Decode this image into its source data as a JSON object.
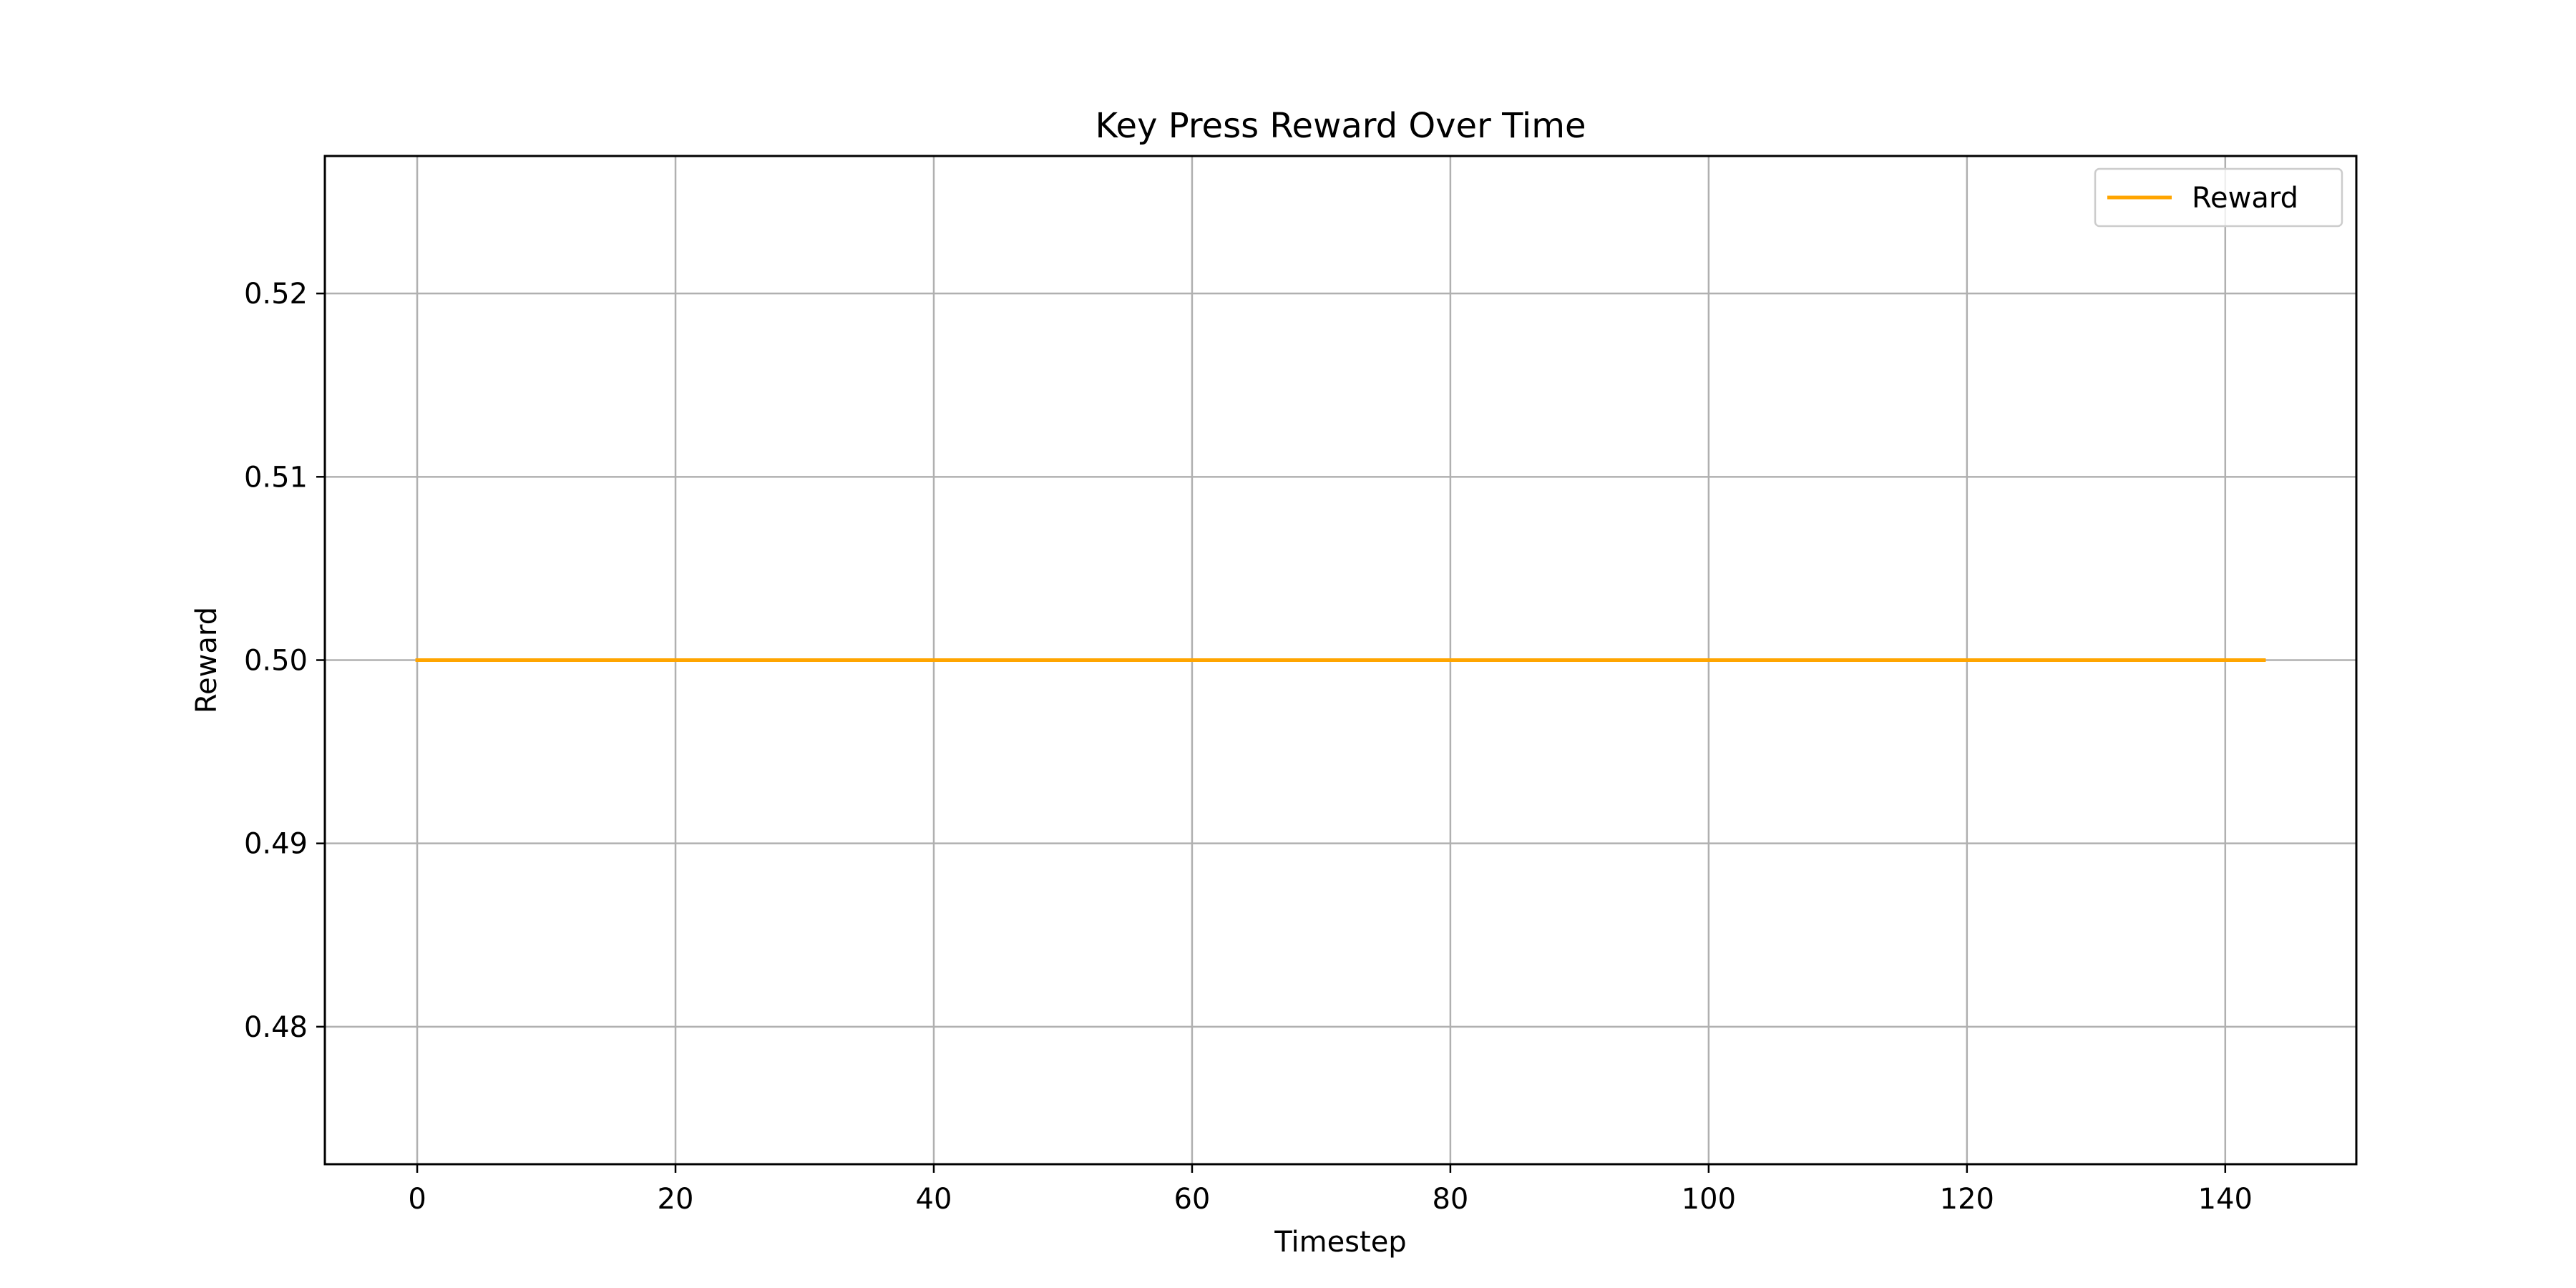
{
  "chart_data": {
    "type": "line",
    "title": "Key Press Reward Over Time",
    "xlabel": "Timestep",
    "ylabel": "Reward",
    "xlim": [
      -7.15,
      150.15
    ],
    "ylim": [
      0.4725,
      0.5275
    ],
    "xticks": [
      0,
      20,
      40,
      60,
      80,
      100,
      120,
      140
    ],
    "xtick_labels": [
      "0",
      "20",
      "40",
      "60",
      "80",
      "100",
      "120",
      "140"
    ],
    "yticks": [
      0.48,
      0.49,
      0.5,
      0.51,
      0.52
    ],
    "ytick_labels": [
      "0.48",
      "0.49",
      "0.50",
      "0.51",
      "0.52"
    ],
    "grid": true,
    "legend_position": "top-right",
    "series": [
      {
        "name": "Reward",
        "color": "#ffa500",
        "x": [
          0,
          143
        ],
        "y": [
          0.5,
          0.5
        ],
        "note_constant": true
      }
    ]
  }
}
